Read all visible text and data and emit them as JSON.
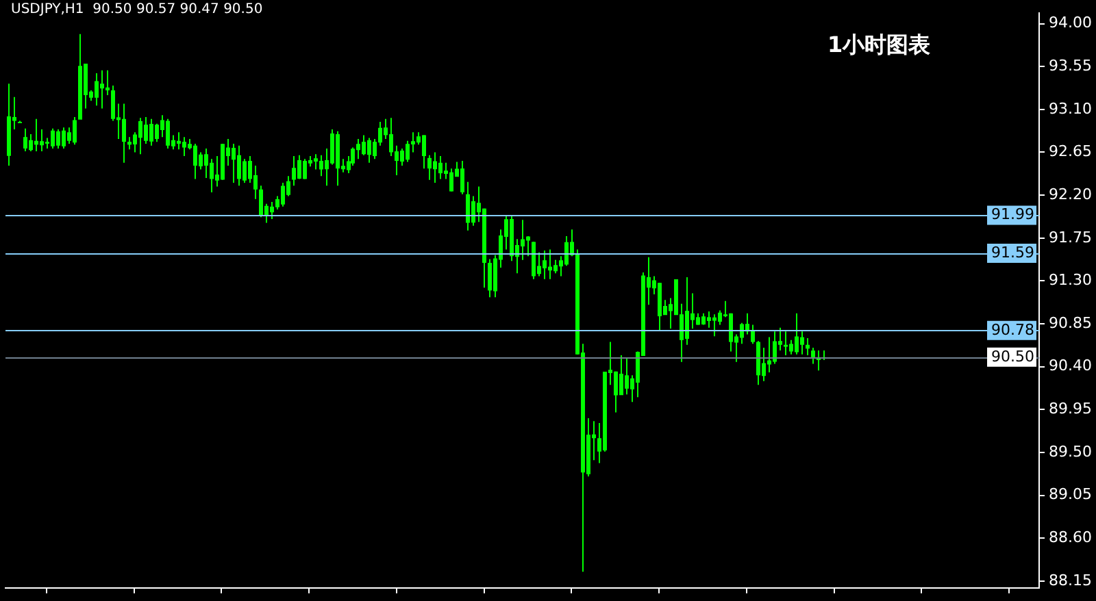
{
  "chart_data": {
    "type": "candlestick",
    "title": "USDJPY,H1  90.50 90.57 90.47 90.50",
    "annotations": [
      "1小时图表"
    ],
    "categories": [
      null,
      null,
      null,
      null,
      null,
      null,
      null,
      null,
      null,
      null,
      null,
      null,
      null,
      null,
      null,
      null,
      null,
      null,
      null,
      null,
      null,
      null,
      null,
      null,
      null,
      null,
      null,
      null,
      null,
      null,
      null,
      null,
      null,
      null,
      null,
      null,
      null,
      null,
      null,
      null,
      null,
      null,
      null,
      null,
      null,
      null,
      null,
      null,
      null,
      null,
      null,
      null,
      null,
      null,
      null,
      null,
      null,
      null,
      null,
      null,
      null,
      null,
      null,
      null,
      null,
      null,
      null,
      null,
      null,
      null,
      null,
      null,
      null,
      null,
      null,
      null,
      null,
      null,
      null,
      null,
      null,
      null,
      null,
      null,
      null,
      null,
      null,
      null,
      null,
      null,
      null,
      null,
      null,
      null,
      null,
      null,
      null,
      null,
      null,
      null,
      null,
      null,
      null,
      null,
      null,
      null,
      null,
      null,
      null,
      null,
      null,
      null,
      null,
      null,
      null,
      null,
      null,
      null,
      null,
      null,
      null,
      null,
      null,
      null,
      null,
      null,
      null,
      null,
      null,
      null,
      null,
      null,
      null,
      null,
      null,
      null,
      null,
      null,
      null,
      null,
      null,
      null,
      null,
      null,
      null,
      null,
      null,
      null,
      null,
      null,
      null,
      null,
      null,
      null,
      null,
      null,
      null,
      null,
      null,
      null,
      null,
      null,
      null,
      null,
      null,
      null,
      null,
      null,
      null,
      null,
      null,
      null,
      null,
      null,
      null,
      null,
      null,
      null,
      null,
      null,
      null,
      null,
      null,
      null,
      null,
      null,
      null,
      null,
      null
    ],
    "color": "#00ff00",
    "ohlc": [
      [
        92.62,
        93.37,
        92.51,
        93.02
      ],
      [
        93.02,
        93.23,
        92.89,
        92.98
      ],
      [
        92.97,
        92.98,
        92.97,
        92.97
      ],
      [
        92.81,
        92.9,
        92.66,
        92.69
      ],
      [
        92.68,
        92.84,
        92.66,
        92.77
      ],
      [
        92.77,
        93.0,
        92.66,
        92.73
      ],
      [
        92.73,
        92.89,
        92.66,
        92.76
      ],
      [
        92.76,
        92.8,
        92.69,
        92.74
      ],
      [
        92.72,
        92.9,
        92.69,
        92.87
      ],
      [
        92.87,
        92.89,
        92.69,
        92.72
      ],
      [
        92.72,
        92.91,
        92.69,
        92.87
      ],
      [
        92.86,
        92.91,
        92.74,
        92.77
      ],
      [
        92.76,
        93.02,
        92.73,
        92.98
      ],
      [
        93.0,
        93.89,
        93.0,
        93.55
      ],
      [
        93.58,
        93.58,
        93.11,
        93.25
      ],
      [
        93.23,
        93.3,
        93.19,
        93.28
      ],
      [
        93.23,
        93.48,
        93.14,
        93.39
      ],
      [
        93.37,
        93.51,
        93.11,
        93.32
      ],
      [
        93.33,
        93.51,
        93.25,
        93.3
      ],
      [
        93.3,
        93.35,
        92.98,
        93.0
      ],
      [
        93.0,
        93.16,
        92.79,
        93.01
      ],
      [
        93.0,
        93.16,
        92.54,
        92.76
      ],
      [
        92.76,
        92.81,
        92.68,
        92.73
      ],
      [
        92.74,
        92.86,
        92.65,
        92.83
      ],
      [
        92.81,
        93.01,
        92.63,
        92.97
      ],
      [
        92.94,
        93.02,
        92.74,
        92.77
      ],
      [
        92.77,
        93.0,
        92.72,
        92.94
      ],
      [
        92.94,
        92.95,
        92.76,
        92.79
      ],
      [
        92.89,
        93.04,
        92.81,
        92.98
      ],
      [
        92.98,
        93.0,
        92.69,
        92.72
      ],
      [
        92.72,
        92.83,
        92.68,
        92.77
      ],
      [
        92.77,
        92.86,
        92.68,
        92.74
      ],
      [
        92.76,
        92.81,
        92.61,
        92.7
      ],
      [
        92.7,
        92.79,
        92.68,
        92.73
      ],
      [
        92.72,
        92.74,
        92.37,
        92.51
      ],
      [
        92.51,
        92.65,
        92.47,
        92.62
      ],
      [
        92.63,
        92.69,
        92.38,
        92.51
      ],
      [
        92.54,
        92.58,
        92.23,
        92.37
      ],
      [
        92.36,
        92.61,
        92.29,
        92.41
      ],
      [
        92.37,
        92.74,
        92.36,
        92.73
      ],
      [
        92.7,
        92.79,
        92.51,
        92.61
      ],
      [
        92.58,
        92.74,
        92.33,
        92.69
      ],
      [
        92.62,
        92.72,
        92.3,
        92.37
      ],
      [
        92.36,
        92.58,
        92.33,
        92.55
      ],
      [
        92.56,
        92.61,
        92.33,
        92.37
      ],
      [
        92.41,
        92.51,
        92.16,
        92.26
      ],
      [
        92.26,
        92.3,
        91.97,
        91.98
      ],
      [
        91.99,
        92.11,
        91.91,
        92.08
      ],
      [
        92.08,
        92.13,
        91.95,
        92.02
      ],
      [
        92.08,
        92.19,
        92.05,
        92.15
      ],
      [
        92.11,
        92.33,
        92.08,
        92.29
      ],
      [
        92.21,
        92.4,
        92.19,
        92.34
      ],
      [
        92.37,
        92.61,
        92.3,
        92.48
      ],
      [
        92.38,
        92.62,
        92.37,
        92.56
      ],
      [
        92.56,
        92.58,
        92.37,
        92.37
      ],
      [
        92.54,
        92.61,
        92.5,
        92.56
      ],
      [
        92.56,
        92.63,
        92.47,
        92.58
      ],
      [
        92.56,
        92.62,
        92.4,
        92.47
      ],
      [
        92.48,
        92.69,
        92.3,
        92.56
      ],
      [
        92.54,
        92.89,
        92.52,
        92.84
      ],
      [
        92.84,
        92.87,
        92.3,
        92.48
      ],
      [
        92.48,
        92.58,
        92.44,
        92.5
      ],
      [
        92.47,
        92.61,
        92.43,
        92.55
      ],
      [
        92.54,
        92.7,
        92.51,
        92.68
      ],
      [
        92.68,
        92.79,
        92.58,
        92.73
      ],
      [
        92.76,
        92.83,
        92.62,
        92.63
      ],
      [
        92.63,
        92.8,
        92.54,
        92.77
      ],
      [
        92.76,
        92.79,
        92.58,
        92.61
      ],
      [
        92.76,
        92.97,
        92.72,
        92.9
      ],
      [
        92.91,
        93.0,
        92.79,
        92.83
      ],
      [
        92.84,
        93.01,
        92.61,
        92.65
      ],
      [
        92.66,
        92.72,
        92.41,
        92.56
      ],
      [
        92.56,
        92.69,
        92.51,
        92.66
      ],
      [
        92.58,
        92.77,
        92.55,
        92.73
      ],
      [
        92.74,
        92.86,
        92.65,
        92.76
      ],
      [
        92.76,
        92.86,
        92.73,
        92.81
      ],
      [
        92.83,
        92.83,
        92.48,
        92.61
      ],
      [
        92.59,
        92.62,
        92.36,
        92.48
      ],
      [
        92.48,
        92.65,
        92.33,
        92.55
      ],
      [
        92.54,
        92.61,
        92.37,
        92.43
      ],
      [
        92.43,
        92.54,
        92.37,
        92.45
      ],
      [
        92.44,
        92.48,
        92.24,
        92.24
      ],
      [
        92.4,
        92.55,
        92.4,
        92.47
      ],
      [
        92.48,
        92.56,
        92.21,
        92.23
      ],
      [
        92.21,
        92.34,
        91.83,
        91.91
      ],
      [
        91.92,
        92.19,
        91.88,
        92.13
      ],
      [
        92.12,
        92.29,
        91.92,
        92.02
      ],
      [
        92.06,
        92.06,
        91.23,
        91.49
      ],
      [
        91.49,
        91.53,
        91.13,
        91.2
      ],
      [
        91.2,
        91.57,
        91.13,
        91.53
      ],
      [
        91.53,
        91.84,
        91.44,
        91.77
      ],
      [
        91.77,
        91.99,
        91.63,
        91.94
      ],
      [
        91.95,
        91.99,
        91.51,
        91.56
      ],
      [
        91.56,
        91.74,
        91.38,
        91.67
      ],
      [
        91.67,
        91.94,
        91.52,
        91.73
      ],
      [
        91.73,
        91.77,
        91.56,
        91.76
      ],
      [
        91.71,
        91.71,
        91.32,
        91.35
      ],
      [
        91.38,
        91.6,
        91.35,
        91.45
      ],
      [
        91.44,
        91.62,
        91.32,
        91.51
      ],
      [
        91.45,
        91.63,
        91.32,
        91.41
      ],
      [
        91.41,
        91.52,
        91.38,
        91.46
      ],
      [
        91.46,
        91.56,
        91.35,
        91.51
      ],
      [
        91.48,
        91.77,
        91.46,
        91.7
      ],
      [
        91.71,
        91.84,
        91.56,
        91.57
      ],
      [
        91.59,
        91.63,
        90.53,
        90.53
      ],
      [
        90.55,
        90.64,
        88.25,
        89.29
      ],
      [
        89.28,
        89.86,
        89.25,
        89.68
      ],
      [
        89.69,
        89.83,
        89.42,
        89.65
      ],
      [
        89.65,
        89.81,
        89.39,
        89.51
      ],
      [
        89.53,
        90.34,
        89.51,
        90.34
      ],
      [
        90.34,
        90.66,
        90.21,
        90.36
      ],
      [
        90.35,
        90.35,
        89.92,
        90.1
      ],
      [
        90.11,
        90.52,
        90.11,
        90.32
      ],
      [
        90.31,
        90.49,
        90.11,
        90.17
      ],
      [
        90.17,
        90.31,
        90.03,
        90.27
      ],
      [
        90.24,
        90.56,
        90.08,
        90.55
      ],
      [
        90.52,
        91.39,
        90.52,
        91.35
      ],
      [
        91.34,
        91.55,
        91.05,
        91.23
      ],
      [
        91.23,
        91.35,
        91.16,
        91.3
      ],
      [
        91.28,
        91.28,
        90.78,
        90.93
      ],
      [
        90.95,
        91.1,
        90.95,
        91.03
      ],
      [
        90.99,
        91.12,
        90.8,
        91.05
      ],
      [
        90.95,
        91.31,
        90.95,
        91.31
      ],
      [
        90.95,
        91.06,
        90.45,
        90.68
      ],
      [
        90.7,
        91.34,
        90.63,
        90.98
      ],
      [
        90.96,
        91.17,
        90.8,
        90.89
      ],
      [
        90.92,
        90.96,
        90.84,
        90.84
      ],
      [
        90.85,
        90.96,
        90.84,
        90.92
      ],
      [
        90.92,
        90.98,
        90.81,
        90.88
      ],
      [
        90.89,
        90.95,
        90.72,
        90.91
      ],
      [
        90.88,
        90.99,
        90.84,
        90.96
      ],
      [
        90.95,
        91.09,
        90.92,
        90.93
      ],
      [
        90.96,
        90.96,
        90.56,
        90.66
      ],
      [
        90.66,
        90.74,
        90.45,
        90.71
      ],
      [
        90.71,
        90.86,
        90.64,
        90.84
      ],
      [
        90.85,
        90.96,
        90.74,
        90.77
      ],
      [
        90.78,
        90.84,
        90.64,
        90.66
      ],
      [
        90.66,
        90.67,
        90.21,
        90.31
      ],
      [
        90.31,
        90.6,
        90.25,
        90.43
      ],
      [
        90.43,
        90.71,
        90.34,
        90.46
      ],
      [
        90.46,
        90.77,
        90.43,
        90.66
      ],
      [
        90.67,
        90.81,
        90.57,
        90.63
      ],
      [
        90.63,
        90.77,
        90.52,
        90.61
      ],
      [
        90.64,
        90.68,
        90.53,
        90.56
      ],
      [
        90.56,
        90.96,
        90.53,
        90.71
      ],
      [
        90.71,
        90.77,
        90.53,
        90.63
      ],
      [
        90.63,
        90.7,
        90.52,
        90.59
      ],
      [
        90.57,
        90.6,
        90.43,
        90.5
      ],
      [
        90.5,
        90.57,
        90.36,
        90.47
      ],
      [
        90.5,
        90.57,
        90.47,
        90.5
      ],
      null,
      null,
      null,
      null,
      null,
      null,
      null,
      null,
      null,
      null,
      null,
      null,
      null,
      null,
      null,
      null,
      null,
      null,
      null,
      null,
      null,
      null,
      null,
      null,
      null,
      null,
      null,
      null,
      null,
      null,
      null,
      null,
      null,
      null,
      null,
      null,
      null,
      null,
      null
    ],
    "ylim": [
      88.08,
      94.11
    ],
    "yticks": [
      {
        "value": 94,
        "label": "94.00"
      },
      93.55,
      {
        "value": 93.1,
        "label": "93.10"
      },
      92.65,
      {
        "value": 92.2,
        "label": "92.20"
      },
      91.75,
      {
        "value": 91.3,
        "label": "91.30"
      },
      90.85,
      {
        "value": 90.4,
        "label": "90.40"
      },
      89.95,
      {
        "value": 89.5,
        "label": "89.50"
      },
      89.05,
      {
        "value": 88.6,
        "label": "88.60"
      },
      88.15
    ],
    "ref_lines": [
      {
        "axis": "y",
        "value": 91.99,
        "label": "91.99",
        "color": "#87cefa"
      },
      {
        "axis": "y",
        "value": 91.59,
        "label": "91.59",
        "color": "#87cefa"
      },
      {
        "axis": "y",
        "value": 90.78,
        "label": "90.78",
        "color": "#87cefa"
      },
      {
        "axis": "y",
        "value": 90.5,
        "label": "90.50",
        "color": "#708090"
      }
    ],
    "tick_labels": "y"
  }
}
